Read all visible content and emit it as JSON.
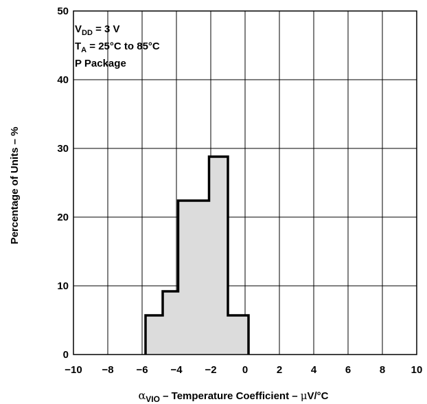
{
  "chart_data": {
    "type": "bar",
    "bar_style": "step-histogram",
    "bin_edges": [
      -5.8,
      -4.8,
      -3.9,
      -2.1,
      -1.0,
      0.2
    ],
    "values": [
      5.7,
      9.2,
      22.4,
      28.8,
      5.7
    ],
    "xlim": [
      -10,
      10
    ],
    "ylim": [
      0,
      50
    ],
    "x_ticks": [
      "−10",
      "−8",
      "−6",
      "−4",
      "−2",
      "0",
      "2",
      "4",
      "6",
      "8",
      "10"
    ],
    "y_ticks": [
      "0",
      "10",
      "20",
      "30",
      "40",
      "50"
    ],
    "grid": true,
    "xlabel": {
      "symbol": "α",
      "sub": "VIO",
      "text": " – Temperature Coefficient – ",
      "unit_mu": "μ",
      "unit_rest": "V/°C"
    },
    "ylabel": "Percentage of Units – %",
    "annotation": {
      "line1_main": "V",
      "line1_sub": "DD",
      "line1_rest": " = 3 V",
      "line2_main": "T",
      "line2_sub": "A",
      "line2_rest": " = 25°C to 85°C",
      "line3": "P Package"
    },
    "colors": {
      "fill": "#dcdcdc",
      "outline": "#000000",
      "grid": "#000000"
    }
  }
}
